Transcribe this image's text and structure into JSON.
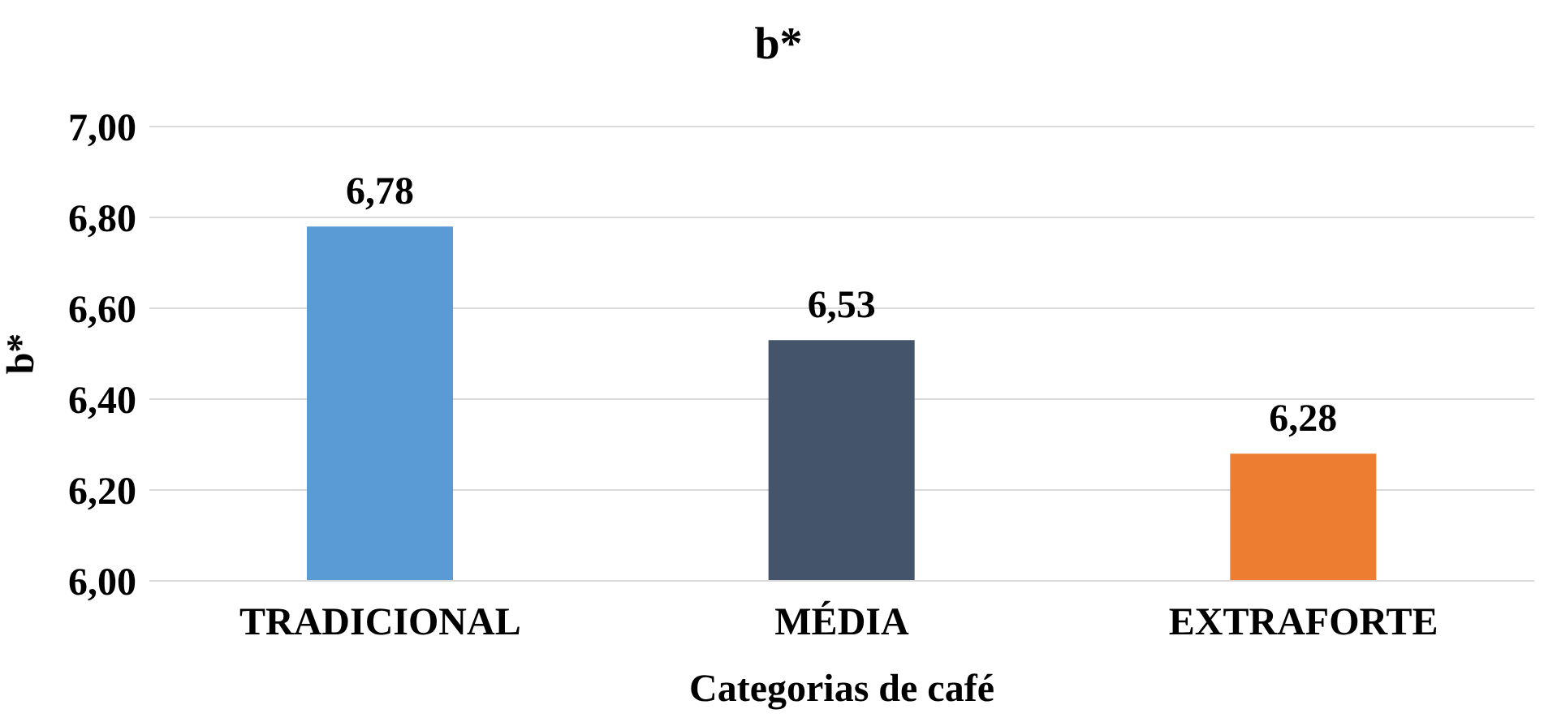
{
  "chart_data": {
    "type": "bar",
    "title": "b*",
    "xlabel": "Categorias de café",
    "ylabel": "b*",
    "categories": [
      "TRADICIONAL",
      "MÉDIA",
      "EXTRAFORTE"
    ],
    "values": [
      6.78,
      6.53,
      6.28
    ],
    "colors": [
      "#5b9bd5",
      "#44546a",
      "#ed7d31"
    ],
    "value_labels": [
      "6,78",
      "6,53",
      "6,28"
    ],
    "ylim": [
      6,
      7
    ],
    "yticks": [
      {
        "value": 6,
        "label": "6,00"
      },
      {
        "value": 6.2,
        "label": "6,20"
      },
      {
        "value": 6.4,
        "label": "6,40"
      },
      {
        "value": 6.6,
        "label": "6,60"
      },
      {
        "value": 6.8,
        "label": "6,80"
      },
      {
        "value": 7,
        "label": "7,00"
      }
    ],
    "grid": "y",
    "legend": false
  }
}
